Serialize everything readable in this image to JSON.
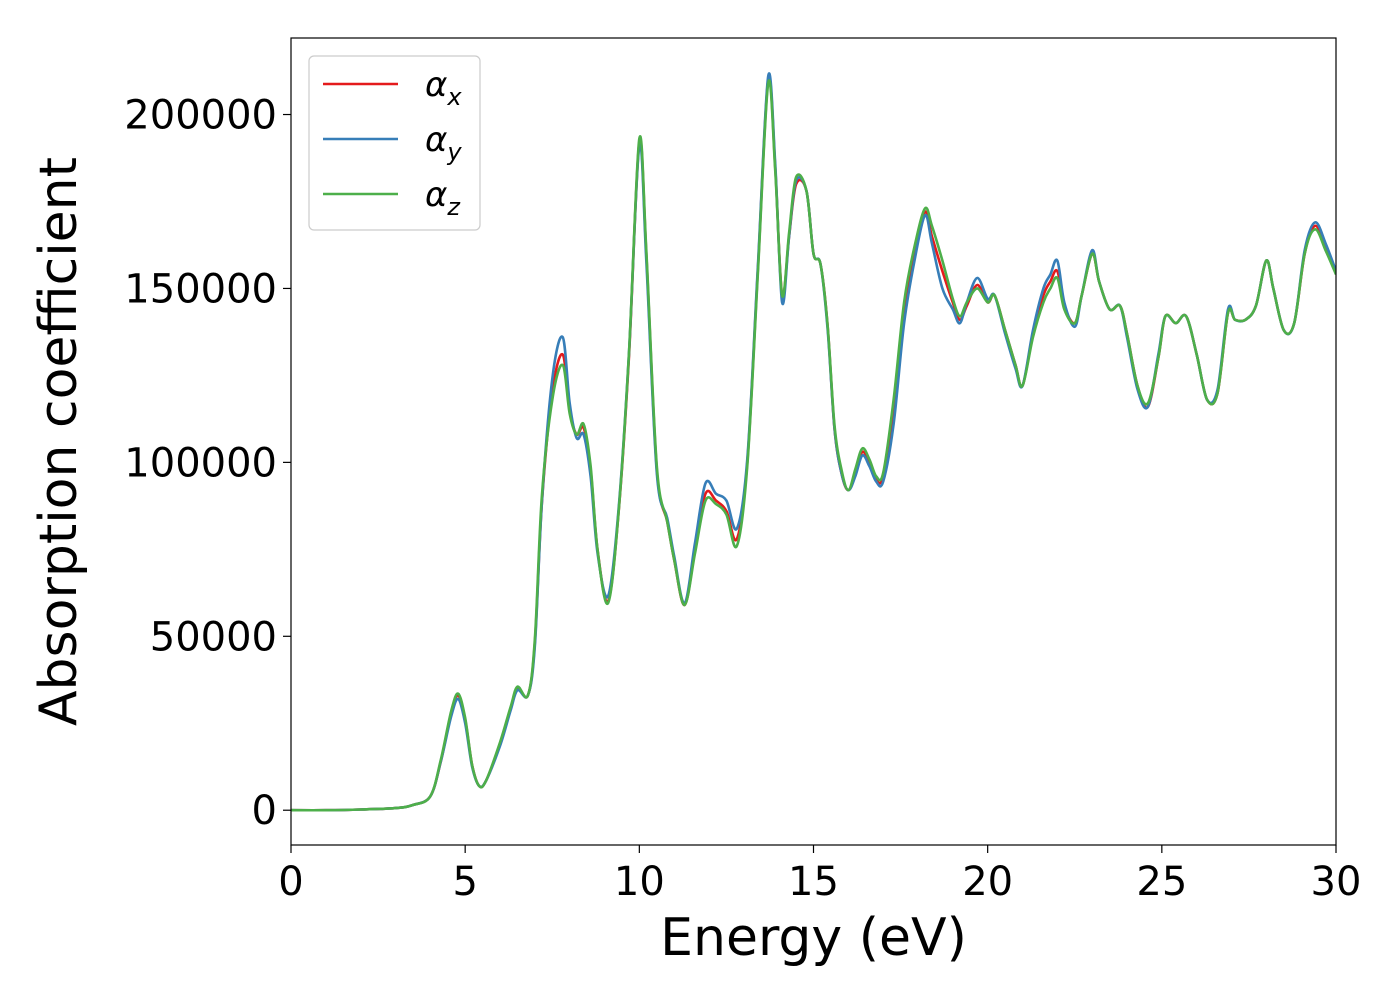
{
  "chart_data": {
    "type": "line",
    "title": "",
    "xlabel": "Energy (eV)",
    "ylabel": "Absorption coefficient",
    "xlim": [
      0,
      30
    ],
    "ylim": [
      -10000,
      222000
    ],
    "xticks": [
      0,
      5,
      10,
      15,
      20,
      25,
      30
    ],
    "yticks": [
      0,
      50000,
      100000,
      150000,
      200000
    ],
    "xtick_labels": [
      "0",
      "5",
      "10",
      "15",
      "20",
      "25",
      "30"
    ],
    "ytick_labels": [
      "0",
      "50000",
      "100000",
      "150000",
      "200000"
    ],
    "grid": false,
    "legend_position": "top-left",
    "series": [
      {
        "name": "αx",
        "symbol": "α",
        "subscript": "x",
        "color": "#e41a1c",
        "x": [
          0,
          1,
          2,
          3,
          3.5,
          4,
          4.3,
          4.6,
          4.8,
          5.0,
          5.2,
          5.4,
          5.6,
          6.0,
          6.3,
          6.5,
          6.8,
          7.0,
          7.2,
          7.5,
          7.8,
          8.0,
          8.2,
          8.4,
          8.6,
          8.8,
          9.1,
          9.4,
          9.7,
          10.0,
          10.2,
          10.5,
          10.8,
          11.0,
          11.3,
          11.6,
          11.9,
          12.2,
          12.5,
          12.8,
          13.1,
          13.4,
          13.7,
          13.9,
          14.1,
          14.3,
          14.5,
          14.8,
          15.0,
          15.2,
          15.4,
          15.6,
          15.8,
          16.0,
          16.2,
          16.4,
          16.6,
          16.8,
          17.0,
          17.3,
          17.6,
          17.9,
          18.2,
          18.4,
          18.7,
          19.0,
          19.2,
          19.4,
          19.7,
          20.0,
          20.2,
          20.5,
          20.8,
          21.0,
          21.3,
          21.6,
          21.8,
          22.0,
          22.2,
          22.5,
          22.7,
          23.0,
          23.2,
          23.5,
          23.8,
          24.0,
          24.3,
          24.6,
          24.9,
          25.1,
          25.4,
          25.7,
          26.0,
          26.3,
          26.6,
          26.9,
          27.1,
          27.4,
          27.7,
          28.0,
          28.2,
          28.5,
          28.8,
          29.1,
          29.4,
          29.7,
          30.0
        ],
        "y": [
          0,
          0,
          200,
          600,
          1500,
          4000,
          14000,
          28000,
          33000,
          26000,
          13000,
          7000,
          8500,
          19000,
          29000,
          35000,
          33000,
          48000,
          88000,
          120000,
          131000,
          115000,
          108000,
          110000,
          98000,
          75000,
          60000,
          85000,
          130000,
          192000,
          160000,
          98000,
          83000,
          72000,
          59000,
          75000,
          91000,
          89000,
          86000,
          78000,
          100000,
          155000,
          210000,
          185000,
          148000,
          165000,
          180000,
          178000,
          160000,
          157000,
          140000,
          110000,
          97000,
          92000,
          97000,
          103000,
          100000,
          95000,
          96000,
          115000,
          143000,
          160000,
          172000,
          165000,
          155000,
          146000,
          141000,
          145000,
          151000,
          146000,
          148000,
          138000,
          128000,
          122000,
          137000,
          148000,
          152000,
          155000,
          145000,
          140000,
          148000,
          160000,
          152000,
          144000,
          145000,
          137000,
          122000,
          116000,
          130000,
          142000,
          140000,
          142000,
          131000,
          118000,
          120000,
          143000,
          141000,
          141000,
          145000,
          158000,
          150000,
          138000,
          140000,
          160000,
          168000,
          162000,
          155000
        ]
      },
      {
        "name": "αy",
        "symbol": "α",
        "subscript": "y",
        "color": "#377eb8",
        "x": [
          0,
          1,
          2,
          3,
          3.5,
          4,
          4.3,
          4.6,
          4.8,
          5.0,
          5.2,
          5.4,
          5.6,
          6.0,
          6.3,
          6.5,
          6.8,
          7.0,
          7.2,
          7.5,
          7.8,
          8.0,
          8.2,
          8.4,
          8.6,
          8.8,
          9.1,
          9.4,
          9.7,
          10.0,
          10.2,
          10.5,
          10.8,
          11.0,
          11.3,
          11.6,
          11.9,
          12.2,
          12.5,
          12.8,
          13.1,
          13.4,
          13.7,
          13.9,
          14.1,
          14.3,
          14.5,
          14.8,
          15.0,
          15.2,
          15.4,
          15.6,
          15.8,
          16.0,
          16.2,
          16.4,
          16.6,
          16.8,
          17.0,
          17.3,
          17.6,
          17.9,
          18.2,
          18.4,
          18.7,
          19.0,
          19.2,
          19.4,
          19.7,
          20.0,
          20.2,
          20.5,
          20.8,
          21.0,
          21.3,
          21.6,
          21.8,
          22.0,
          22.2,
          22.5,
          22.7,
          23.0,
          23.2,
          23.5,
          23.8,
          24.0,
          24.3,
          24.6,
          24.9,
          25.1,
          25.4,
          25.7,
          26.0,
          26.3,
          26.6,
          26.9,
          27.1,
          27.4,
          27.7,
          28.0,
          28.2,
          28.5,
          28.8,
          29.1,
          29.4,
          29.7,
          30.0
        ],
        "y": [
          0,
          0,
          200,
          600,
          1500,
          4000,
          14000,
          27000,
          32000,
          25000,
          12500,
          7000,
          8500,
          18500,
          28500,
          34500,
          33000,
          47000,
          88000,
          124000,
          136000,
          117000,
          107000,
          108000,
          96000,
          74000,
          61500,
          86000,
          131000,
          191000,
          158000,
          97000,
          84000,
          73000,
          59500,
          77000,
          94000,
          91000,
          89000,
          81000,
          101000,
          156000,
          211000,
          186000,
          146000,
          165000,
          181000,
          178000,
          160000,
          157000,
          139000,
          110000,
          97000,
          92000,
          96000,
          102000,
          99000,
          94500,
          94500,
          111000,
          140000,
          158000,
          171000,
          163000,
          150000,
          144000,
          140000,
          146000,
          153000,
          147000,
          148000,
          137000,
          127000,
          122000,
          138000,
          150000,
          154000,
          158000,
          146000,
          139000,
          148000,
          161000,
          152000,
          144000,
          145000,
          136000,
          121000,
          116000,
          131000,
          142000,
          140000,
          142000,
          131000,
          118000,
          121000,
          144000,
          141000,
          141000,
          145000,
          158000,
          150000,
          138000,
          140000,
          161000,
          169000,
          163000,
          155000
        ]
      },
      {
        "name": "αz",
        "symbol": "α",
        "subscript": "z",
        "color": "#4daf4a",
        "x": [
          0,
          1,
          2,
          3,
          3.5,
          4,
          4.3,
          4.6,
          4.8,
          5.0,
          5.2,
          5.4,
          5.6,
          6.0,
          6.3,
          6.5,
          6.8,
          7.0,
          7.2,
          7.5,
          7.8,
          8.0,
          8.2,
          8.4,
          8.6,
          8.8,
          9.1,
          9.4,
          9.7,
          10.0,
          10.2,
          10.5,
          10.8,
          11.0,
          11.3,
          11.6,
          11.9,
          12.2,
          12.5,
          12.8,
          13.1,
          13.4,
          13.7,
          13.9,
          14.1,
          14.3,
          14.5,
          14.8,
          15.0,
          15.2,
          15.4,
          15.6,
          15.8,
          16.0,
          16.2,
          16.4,
          16.6,
          16.8,
          17.0,
          17.3,
          17.6,
          17.9,
          18.2,
          18.4,
          18.7,
          19.0,
          19.2,
          19.4,
          19.7,
          20.0,
          20.2,
          20.5,
          20.8,
          21.0,
          21.3,
          21.6,
          21.8,
          22.0,
          22.2,
          22.5,
          22.7,
          23.0,
          23.2,
          23.5,
          23.8,
          24.0,
          24.3,
          24.6,
          24.9,
          25.1,
          25.4,
          25.7,
          26.0,
          26.3,
          26.6,
          26.9,
          27.1,
          27.4,
          27.7,
          28.0,
          28.2,
          28.5,
          28.8,
          29.1,
          29.4,
          29.7,
          30.0
        ],
        "y": [
          0,
          0,
          200,
          600,
          1500,
          4000,
          14500,
          28500,
          33500,
          26500,
          13000,
          7000,
          8500,
          19500,
          29500,
          35500,
          33000,
          49000,
          90000,
          118000,
          128000,
          114000,
          108000,
          111000,
          99000,
          75000,
          59500,
          85000,
          131000,
          193000,
          161000,
          99000,
          83000,
          72000,
          59000,
          74000,
          89000,
          88000,
          85000,
          76000,
          99000,
          154000,
          209000,
          184000,
          148000,
          166000,
          182000,
          178000,
          160000,
          157000,
          140000,
          111000,
          98000,
          92000,
          98000,
          104000,
          101000,
          96000,
          97000,
          118000,
          146000,
          162000,
          173000,
          168000,
          158000,
          147000,
          142000,
          146000,
          150000,
          146000,
          148000,
          138000,
          128000,
          122000,
          136000,
          146000,
          150000,
          153000,
          144000,
          140000,
          148000,
          160000,
          152000,
          144000,
          145000,
          137000,
          122000,
          117000,
          130000,
          142000,
          140000,
          142000,
          131000,
          118000,
          120000,
          143000,
          141000,
          141000,
          145000,
          158000,
          150000,
          138000,
          140000,
          160000,
          167000,
          161000,
          154000
        ]
      }
    ]
  }
}
